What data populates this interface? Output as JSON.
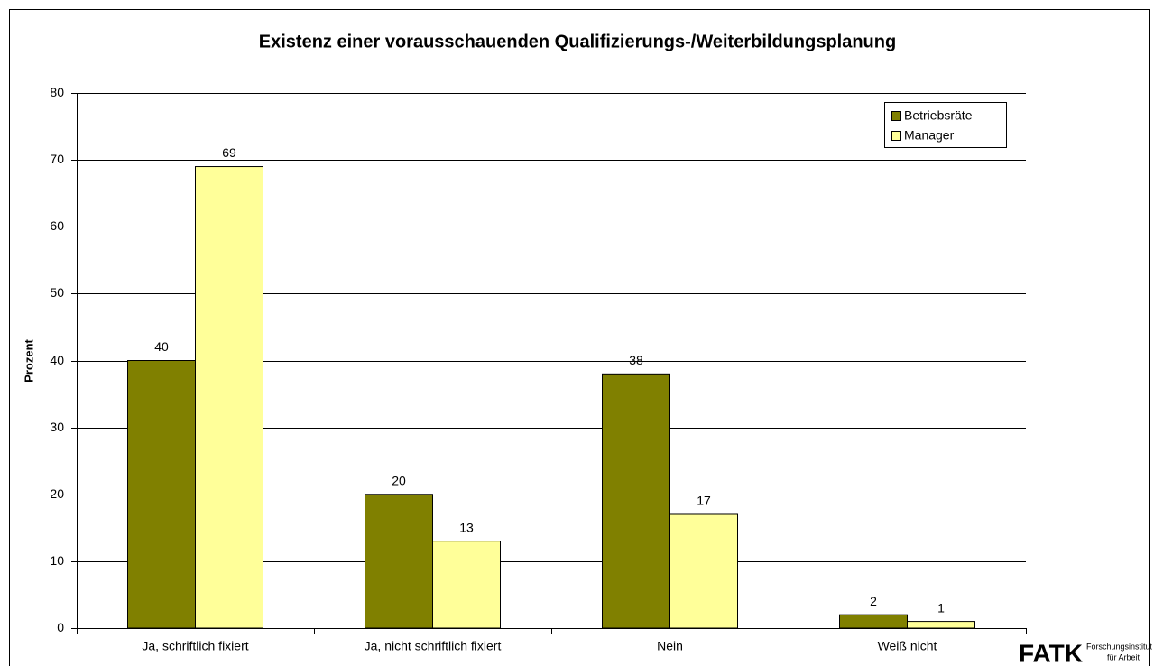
{
  "chart_data": {
    "type": "bar",
    "title": "Existenz einer vorausschauenden Qualifizierungs-/Weiterbildungsplanung",
    "y_label": "Prozent",
    "categories": [
      "Ja, schriftlich fixiert",
      "Ja, nicht schriftlich fixiert",
      "Nein",
      "Weiß nicht"
    ],
    "series": [
      {
        "name": "Betriebsräte",
        "color": "#808000",
        "values": [
          40,
          20,
          38,
          2
        ]
      },
      {
        "name": "Manager",
        "color": "#ffff99",
        "values": [
          69,
          13,
          17,
          1
        ]
      }
    ],
    "ylim": [
      0,
      80
    ],
    "yticks": [
      0,
      10,
      20,
      30,
      40,
      50,
      60,
      70,
      80
    ],
    "grid": true,
    "legend": "top-right"
  },
  "logo": {
    "mark": "FATK",
    "lines": [
      "Forschungsinstitut",
      "für Arbeit"
    ]
  }
}
